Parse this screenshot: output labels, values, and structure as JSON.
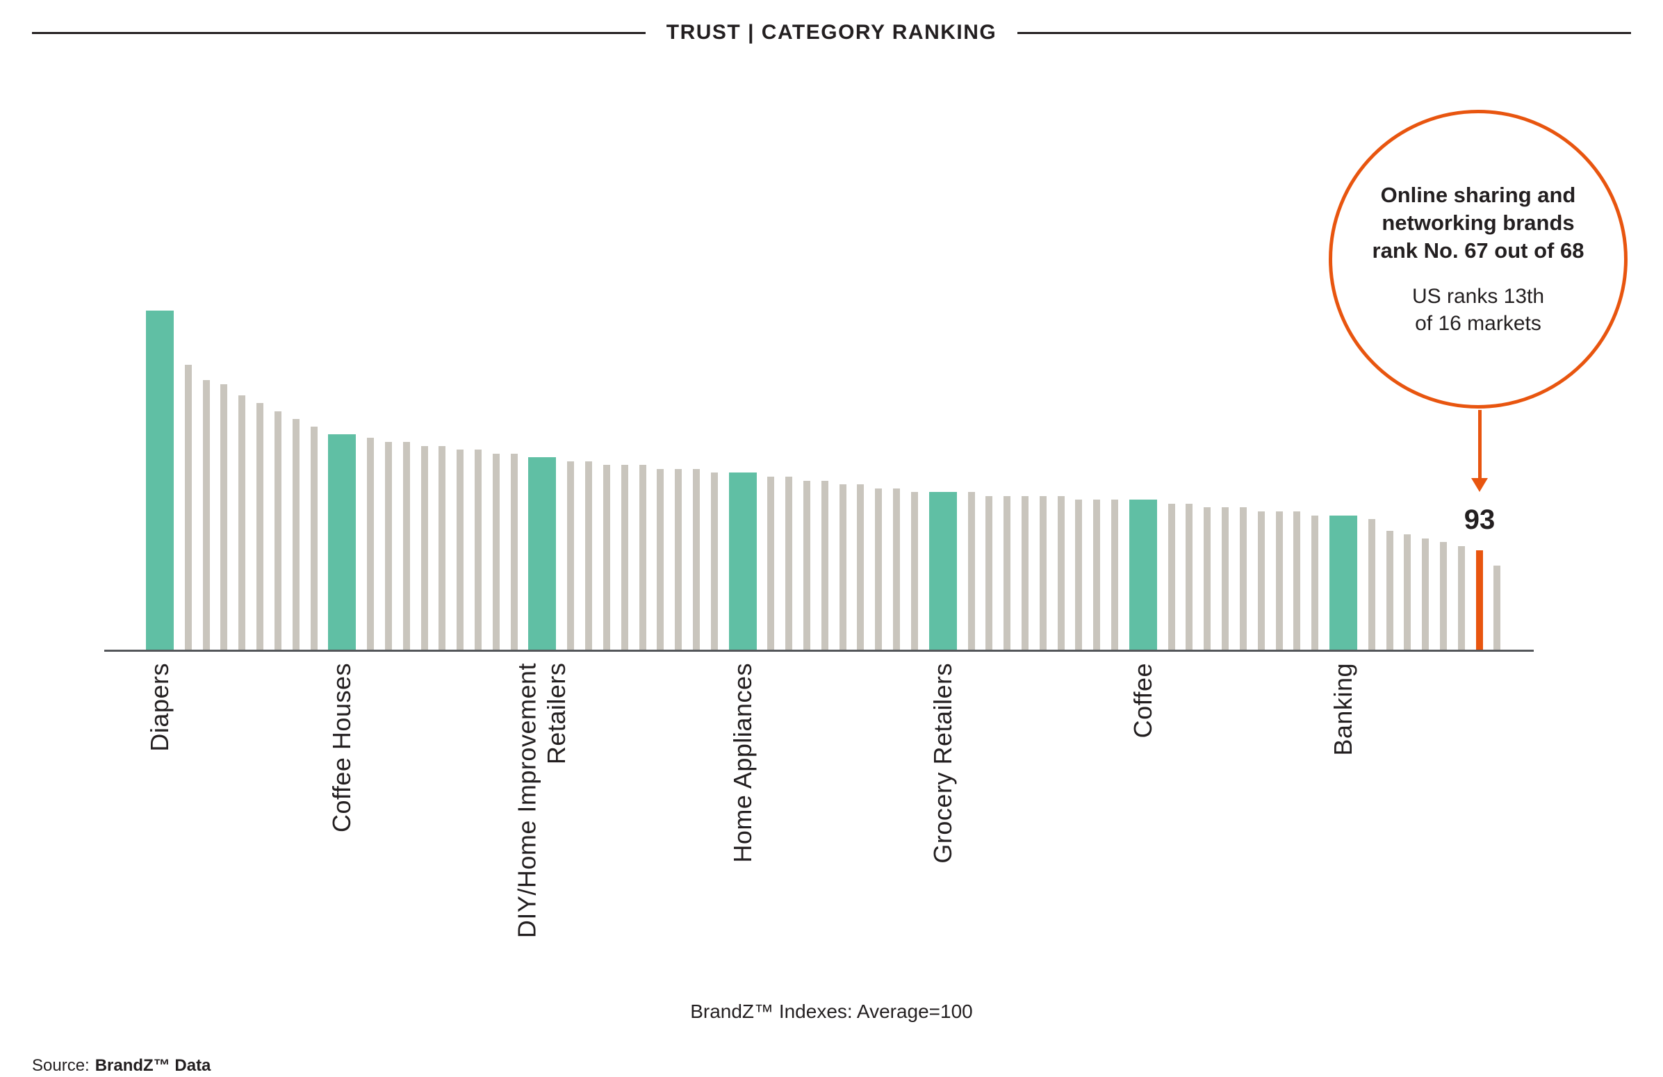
{
  "title": "TRUST | CATEGORY RANKING",
  "annotation": {
    "bold_text": "Online sharing and\nnetworking brands\nrank No. 67 out of 68",
    "regular_text": "US ranks 13th\nof 16 markets"
  },
  "caption": "BrandZ™ Indexes: Average=100",
  "source": {
    "prefix": "Source:",
    "name": "BrandZ™ Data"
  },
  "colors": {
    "teal": "#60BFA4",
    "gray": "#C9C5BD",
    "orange": "#E8550F",
    "text": "#231F20",
    "axis": "#54565A"
  },
  "chart_data": {
    "type": "bar",
    "title": "TRUST | CATEGORY RANKING",
    "xlabel": "BrandZ™ Indexes: Average=100",
    "average": 100,
    "n_bars": 68,
    "ylim": [
      80,
      125
    ],
    "values": [
      124,
      117,
      115,
      114.5,
      113,
      112,
      111,
      110,
      109,
      108,
      107.5,
      107,
      107,
      106.5,
      106.5,
      106,
      106,
      105.5,
      105.5,
      105,
      104.5,
      104.5,
      104,
      104,
      104,
      103.5,
      103.5,
      103.5,
      103,
      103,
      102.5,
      102.5,
      102,
      102,
      101.5,
      101.5,
      101,
      101,
      100.5,
      100.5,
      100.5,
      100,
      100,
      100,
      100,
      100,
      99.5,
      99.5,
      99.5,
      99.5,
      99,
      99,
      98.5,
      98.5,
      98.5,
      98,
      98,
      98,
      97.5,
      97.5,
      97,
      95.5,
      95,
      94.5,
      94,
      93.5,
      93,
      91
    ],
    "labeled_categories": {
      "0": "Diapers",
      "9": "Coffee Houses",
      "19": "DIY/Home Improvement\nRetailers",
      "29": "Home Appliances",
      "39": "Grocery Retailers",
      "49": "Coffee",
      "59": "Banking"
    },
    "value_label": {
      "index": 66,
      "text": "93",
      "category": "Online sharing and networking brands"
    }
  }
}
